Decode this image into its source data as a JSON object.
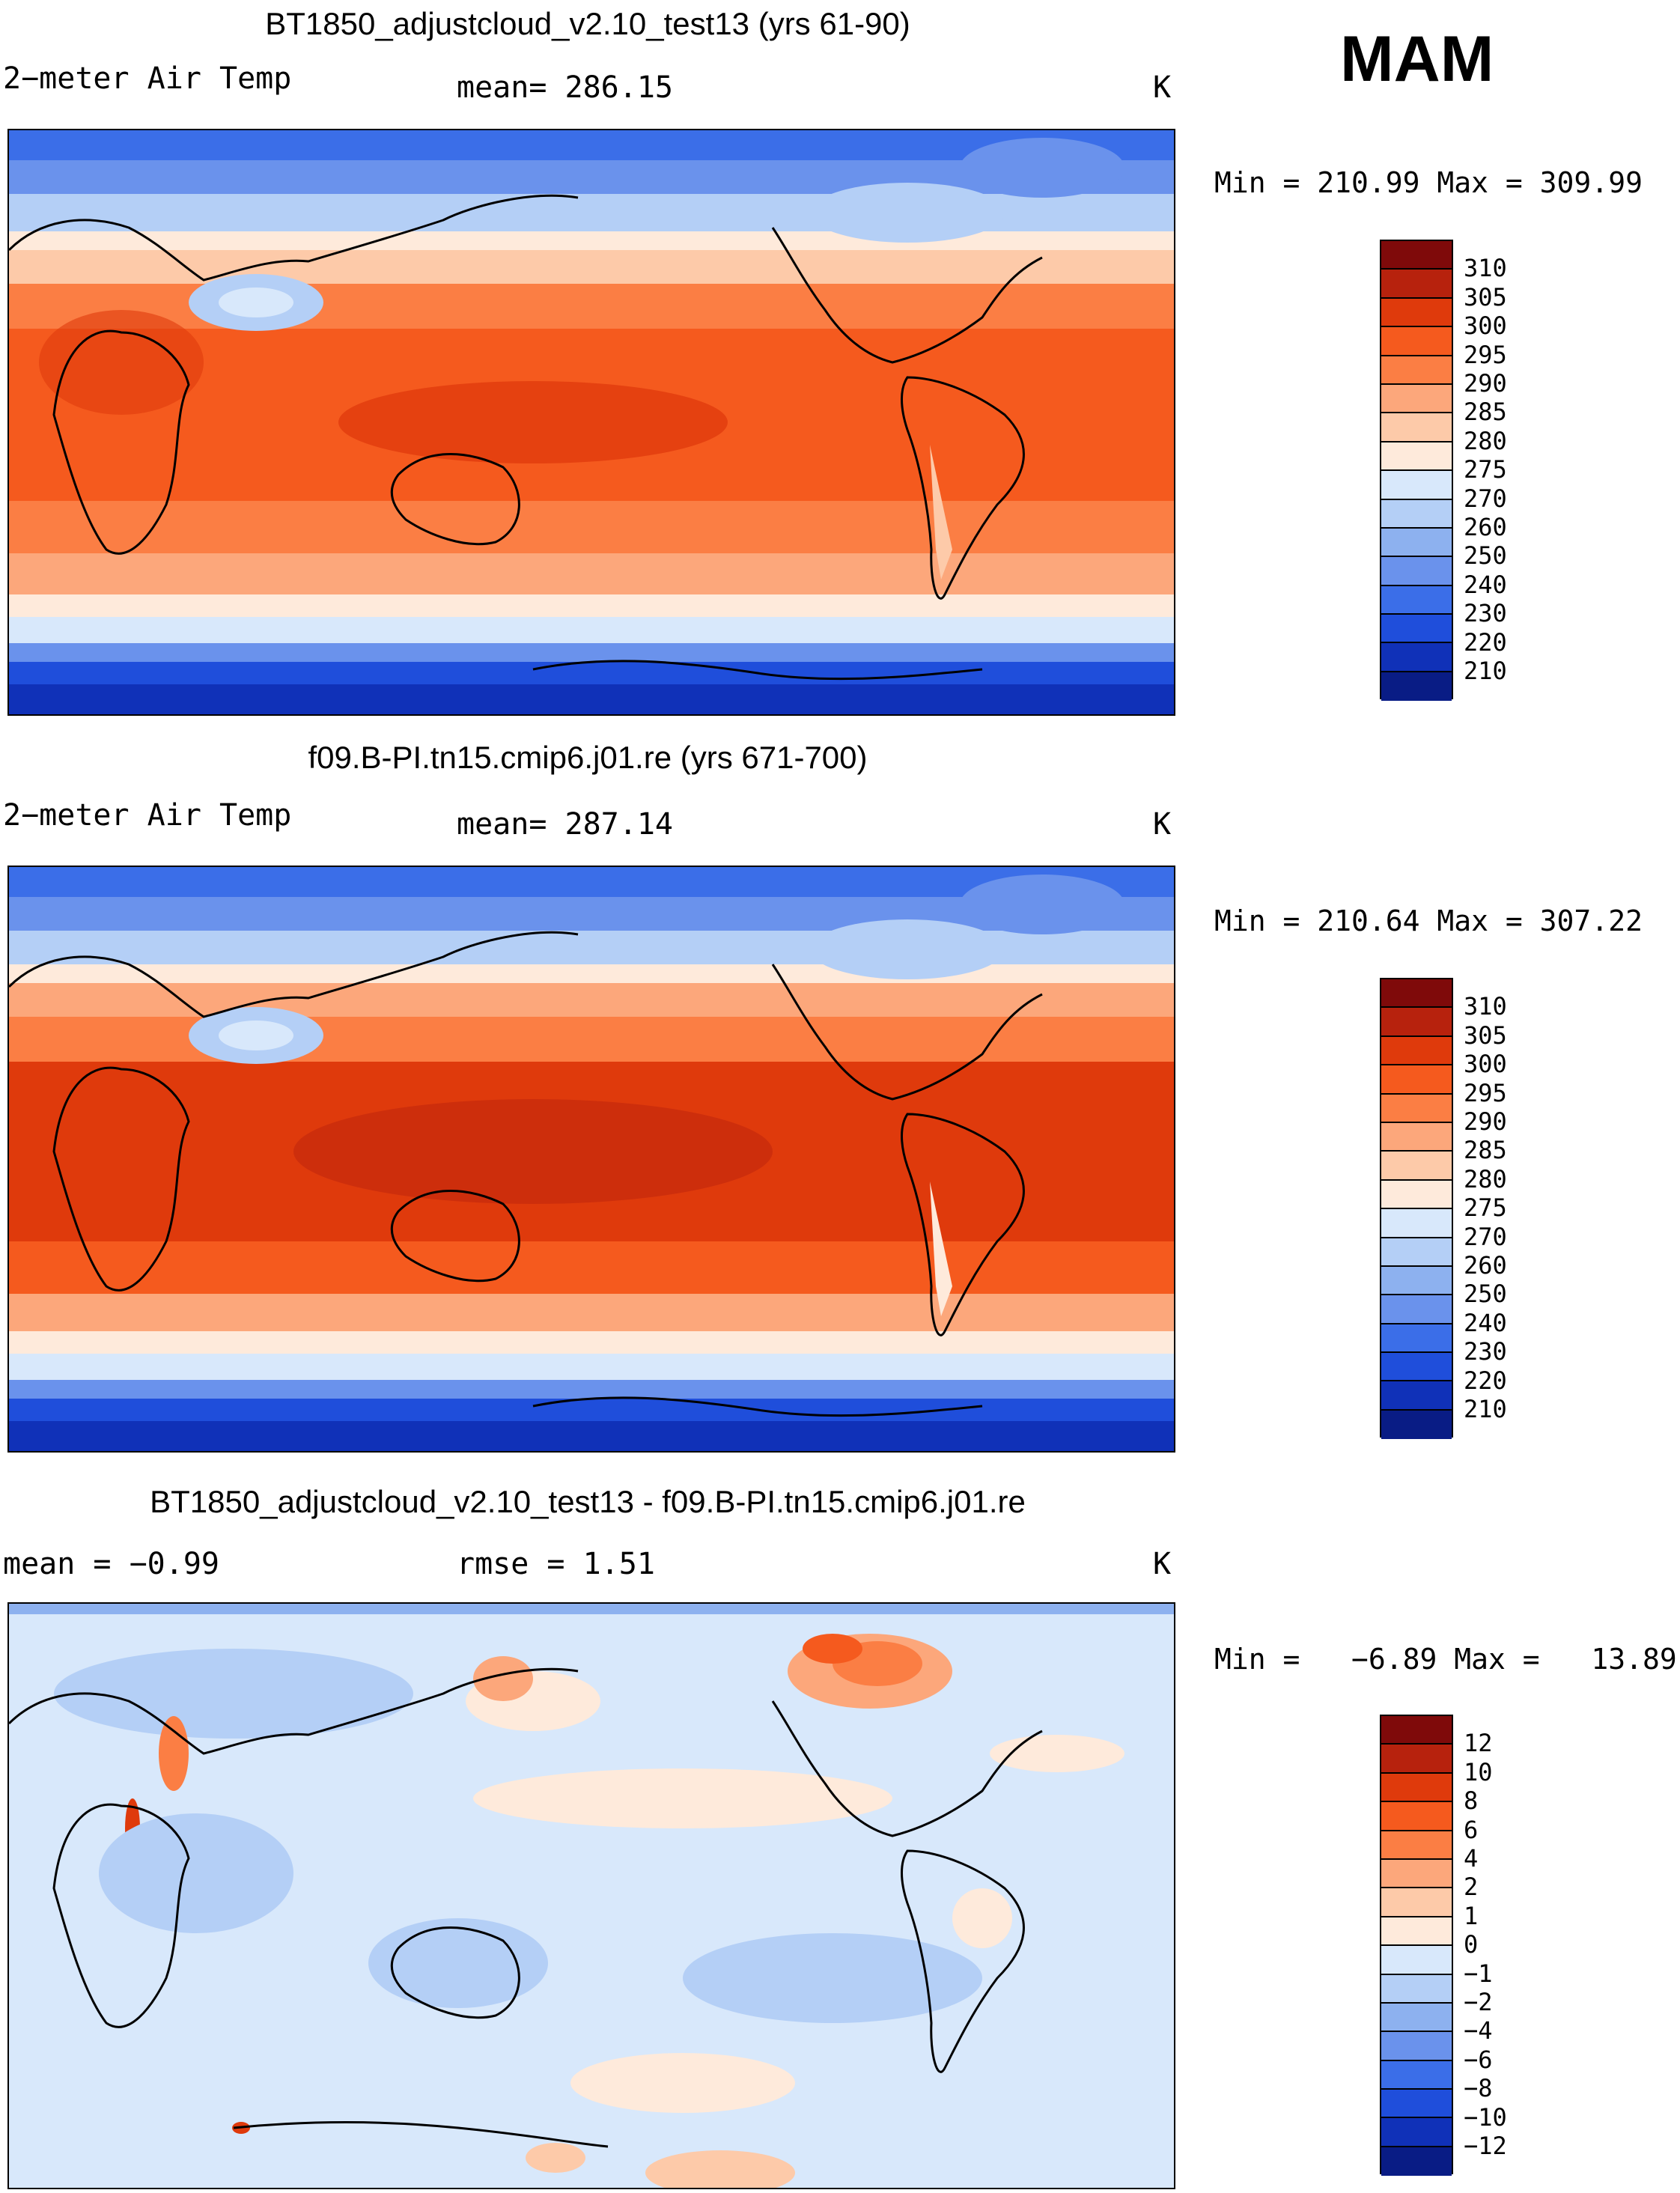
{
  "season": "MAM",
  "panels": [
    {
      "title": "BT1850_adjustcloud_v2.10_test13 (yrs 61-90)",
      "variable": "2−meter Air Temp",
      "stat1": "mean=  286.15",
      "stat2": "",
      "units": "K",
      "minmax": "Min = 210.99 Max = 309.99",
      "colorbar": {
        "labels": [
          "310",
          "305",
          "300",
          "295",
          "290",
          "285",
          "280",
          "275",
          "270",
          "260",
          "250",
          "240",
          "230",
          "220",
          "210"
        ],
        "colors": [
          "#7f0a0a",
          "#b7220d",
          "#df3a0c",
          "#f55a1e",
          "#fb7e44",
          "#fca77b",
          "#fdcaa9",
          "#feeadb",
          "#d8e8fb",
          "#b4cff6",
          "#8db1ef",
          "#6a92ec",
          "#3b6ee8",
          "#1f4edb",
          "#1031b8",
          "#091c85"
        ]
      }
    },
    {
      "title": "f09.B-PI.tn15.cmip6.j01.re (yrs 671-700)",
      "variable": "2−meter Air Temp",
      "stat1": "mean=  287.14",
      "stat2": "",
      "units": "K",
      "minmax": "Min = 210.64 Max = 307.22",
      "colorbar": {
        "labels": [
          "310",
          "305",
          "300",
          "295",
          "290",
          "285",
          "280",
          "275",
          "270",
          "260",
          "250",
          "240",
          "230",
          "220",
          "210"
        ],
        "colors": [
          "#7f0a0a",
          "#b7220d",
          "#df3a0c",
          "#f55a1e",
          "#fb7e44",
          "#fca77b",
          "#fdcaa9",
          "#feeadb",
          "#d8e8fb",
          "#b4cff6",
          "#8db1ef",
          "#6a92ec",
          "#3b6ee8",
          "#1f4edb",
          "#1031b8",
          "#091c85"
        ]
      }
    },
    {
      "title": "BT1850_adjustcloud_v2.10_test13 - f09.B-PI.tn15.cmip6.j01.re",
      "variable": "mean =   −0.99",
      "stat1": "rmse =    1.51",
      "stat2": "",
      "units": "K",
      "minmax": "Min =   −6.89 Max =   13.89",
      "colorbar": {
        "labels": [
          "12",
          "10",
          "8",
          "6",
          "4",
          "2",
          "1",
          "0",
          "−1",
          "−2",
          "−4",
          "−6",
          "−8",
          "−10",
          "−12"
        ],
        "colors": [
          "#7f0a0a",
          "#b7220d",
          "#df3a0c",
          "#f55a1e",
          "#fb7e44",
          "#fca77b",
          "#fdcaa9",
          "#feeadb",
          "#d8e8fb",
          "#b4cff6",
          "#8db1ef",
          "#6a92ec",
          "#3b6ee8",
          "#1f4edb",
          "#1031b8",
          "#091c85"
        ]
      }
    }
  ]
}
